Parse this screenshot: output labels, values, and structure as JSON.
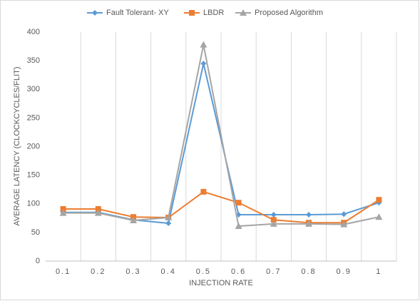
{
  "chart_data": {
    "type": "line",
    "x_label": "INJECTION RATE",
    "y_label": "AVERAGE LATENCY (CLOCKCYCLES/FLIT)",
    "categories": [
      "0.1",
      "0.2",
      "0.3",
      "0.4",
      "0.5",
      "0.6",
      "0.7",
      "0.8",
      "0.9",
      "1"
    ],
    "series": [
      {
        "name": "Fault Tolerant- XY",
        "color": "#5b9bd5",
        "marker": "diamond",
        "values": [
          85,
          85,
          72,
          66,
          345,
          81,
          81,
          81,
          82,
          102
        ]
      },
      {
        "name": "LBDR",
        "color": "#ed7d31",
        "marker": "square",
        "values": [
          91,
          91,
          77,
          76,
          121,
          102,
          72,
          67,
          67,
          107
        ]
      },
      {
        "name": "Proposed Algorithm",
        "color": "#a5a5a5",
        "marker": "triangle",
        "values": [
          84,
          84,
          71,
          76,
          378,
          61,
          65,
          65,
          64,
          77
        ]
      }
    ],
    "ylim": [
      0,
      400
    ],
    "yticks": [
      0,
      50,
      100,
      150,
      200,
      250,
      300,
      350,
      400
    ],
    "grid": true,
    "legend": "top"
  }
}
